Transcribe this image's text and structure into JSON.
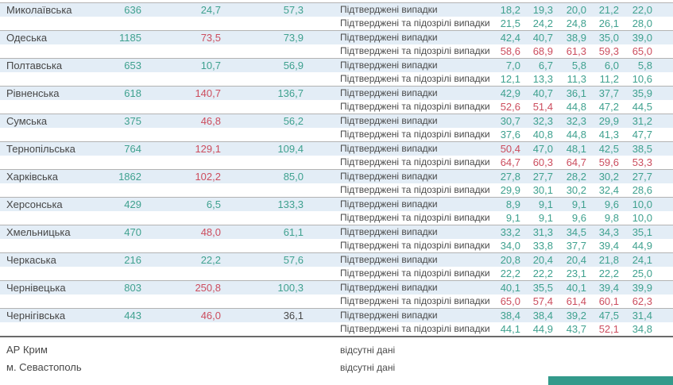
{
  "palette": {
    "green_value": "#3fa18f",
    "red_value": "#cc4d5e",
    "dark_value": "#4a4a4a",
    "band_blue": "#e3edf6",
    "separator_line": "#b3b3b3",
    "section_line": "#6a6a6a",
    "footer_teal": "#339a8b"
  },
  "table": {
    "row_labels": {
      "confirmed": "Підтверджені випадки",
      "confirmed_suspected": "Підтверджені та підозрілі випадки"
    },
    "no_data_label": "відсутні дані",
    "regions": [
      {
        "name": "Миколаївська",
        "cases": "636",
        "inc": "24,7",
        "inc_red": false,
        "dyn": "57,3",
        "dyn_dark": false,
        "confirmed": [
          "18,2",
          "19,3",
          "20,0",
          "21,2",
          "22,0"
        ],
        "confirmed_red": [],
        "suspected": [
          "21,5",
          "24,2",
          "24,8",
          "26,1",
          "28,0"
        ],
        "suspected_red": []
      },
      {
        "name": "Одеська",
        "cases": "1185",
        "inc": "73,5",
        "inc_red": true,
        "dyn": "73,9",
        "dyn_dark": false,
        "confirmed": [
          "42,4",
          "40,7",
          "38,9",
          "35,0",
          "39,0"
        ],
        "confirmed_red": [],
        "suspected": [
          "58,6",
          "68,9",
          "61,3",
          "59,3",
          "65,0"
        ],
        "suspected_red": [
          0,
          1,
          2,
          3,
          4
        ]
      },
      {
        "name": "Полтавська",
        "cases": "653",
        "inc": "10,7",
        "inc_red": false,
        "dyn": "56,9",
        "dyn_dark": false,
        "confirmed": [
          "7,0",
          "6,7",
          "5,8",
          "6,0",
          "5,8"
        ],
        "confirmed_red": [],
        "suspected": [
          "12,1",
          "13,3",
          "11,3",
          "11,2",
          "10,6"
        ],
        "suspected_red": []
      },
      {
        "name": "Рівненська",
        "cases": "618",
        "inc": "140,7",
        "inc_red": true,
        "dyn": "136,7",
        "dyn_dark": false,
        "confirmed": [
          "42,9",
          "40,7",
          "36,1",
          "37,7",
          "35,9"
        ],
        "confirmed_red": [],
        "suspected": [
          "52,6",
          "51,4",
          "44,8",
          "47,2",
          "44,5"
        ],
        "suspected_red": [
          0,
          1
        ]
      },
      {
        "name": "Сумська",
        "cases": "375",
        "inc": "46,8",
        "inc_red": true,
        "dyn": "56,2",
        "dyn_dark": false,
        "confirmed": [
          "30,7",
          "32,3",
          "32,3",
          "29,9",
          "31,2"
        ],
        "confirmed_red": [],
        "suspected": [
          "37,6",
          "40,8",
          "44,8",
          "41,3",
          "47,7"
        ],
        "suspected_red": []
      },
      {
        "name": "Тернопільська",
        "cases": "764",
        "inc": "129,1",
        "inc_red": true,
        "dyn": "109,4",
        "dyn_dark": false,
        "confirmed": [
          "50,4",
          "47,0",
          "48,1",
          "42,5",
          "38,5"
        ],
        "confirmed_red": [
          0
        ],
        "suspected": [
          "64,7",
          "60,3",
          "64,7",
          "59,6",
          "53,3"
        ],
        "suspected_red": [
          0,
          1,
          2,
          3,
          4
        ]
      },
      {
        "name": "Харківська",
        "cases": "1862",
        "inc": "102,2",
        "inc_red": true,
        "dyn": "85,0",
        "dyn_dark": false,
        "confirmed": [
          "27,8",
          "27,7",
          "28,2",
          "30,2",
          "27,7"
        ],
        "confirmed_red": [],
        "suspected": [
          "29,9",
          "30,1",
          "30,2",
          "32,4",
          "28,6"
        ],
        "suspected_red": []
      },
      {
        "name": "Херсонська",
        "cases": "429",
        "inc": "6,5",
        "inc_red": false,
        "dyn": "133,3",
        "dyn_dark": false,
        "confirmed": [
          "8,9",
          "9,1",
          "9,1",
          "9,6",
          "10,0"
        ],
        "confirmed_red": [],
        "suspected": [
          "9,1",
          "9,1",
          "9,6",
          "9,8",
          "10,0"
        ],
        "suspected_red": []
      },
      {
        "name": "Хмельницька",
        "cases": "470",
        "inc": "48,0",
        "inc_red": true,
        "dyn": "61,1",
        "dyn_dark": false,
        "confirmed": [
          "33,2",
          "31,3",
          "34,5",
          "34,3",
          "35,1"
        ],
        "confirmed_red": [],
        "suspected": [
          "34,0",
          "33,8",
          "37,7",
          "39,4",
          "44,9"
        ],
        "suspected_red": []
      },
      {
        "name": "Черкаська",
        "cases": "216",
        "inc": "22,2",
        "inc_red": false,
        "dyn": "57,6",
        "dyn_dark": false,
        "confirmed": [
          "20,8",
          "20,4",
          "20,4",
          "21,8",
          "24,1"
        ],
        "confirmed_red": [],
        "suspected": [
          "22,2",
          "22,2",
          "23,1",
          "22,2",
          "25,0"
        ],
        "suspected_red": []
      },
      {
        "name": "Чернівецька",
        "cases": "803",
        "inc": "250,8",
        "inc_red": true,
        "dyn": "100,3",
        "dyn_dark": false,
        "confirmed": [
          "40,1",
          "35,5",
          "40,1",
          "39,4",
          "39,9"
        ],
        "confirmed_red": [],
        "suspected": [
          "65,0",
          "57,4",
          "61,4",
          "60,1",
          "62,3"
        ],
        "suspected_red": [
          0,
          1,
          2,
          3,
          4
        ]
      },
      {
        "name": "Чернігівська",
        "cases": "443",
        "inc": "46,0",
        "inc_red": true,
        "dyn": "36,1",
        "dyn_dark": true,
        "confirmed": [
          "38,4",
          "38,4",
          "39,2",
          "47,5",
          "31,4"
        ],
        "confirmed_red": [],
        "suspected": [
          "44,1",
          "44,9",
          "43,7",
          "52,1",
          "34,8"
        ],
        "suspected_red": [
          3
        ]
      }
    ],
    "special_rows": [
      {
        "name": "АР Крим"
      },
      {
        "name": "м. Севастополь"
      }
    ]
  }
}
